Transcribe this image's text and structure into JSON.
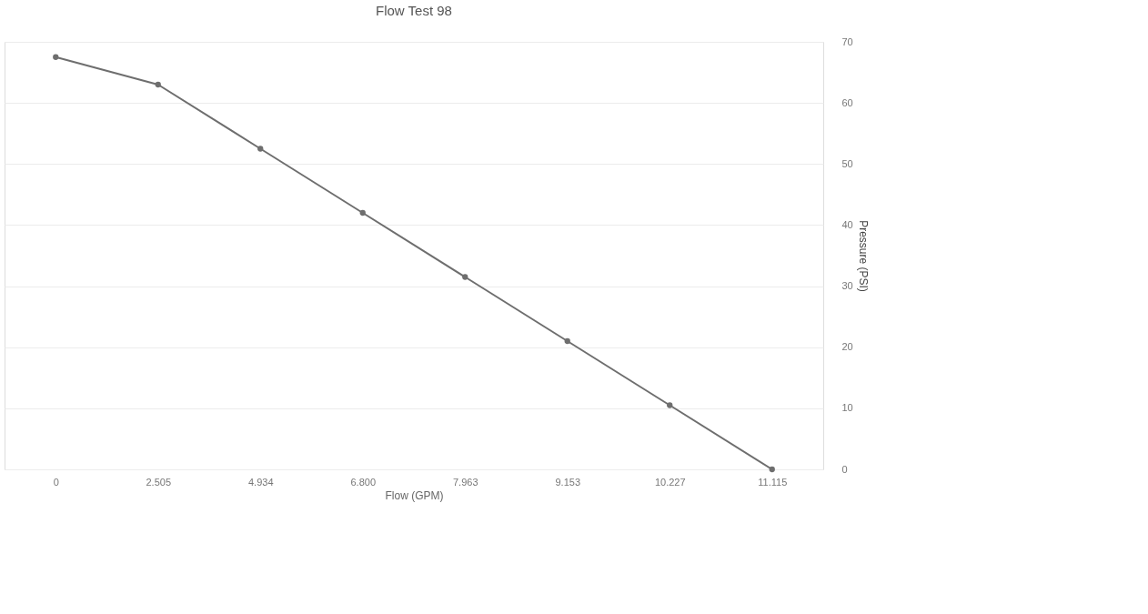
{
  "chart_data": {
    "type": "line",
    "title": "Flow Test 98",
    "xlabel": "Flow (GPM)",
    "ylabel": "Pressure (PSI)",
    "categories": [
      "0",
      "2.505",
      "4.934",
      "6.800",
      "7.963",
      "9.153",
      "10.227",
      "11.115"
    ],
    "series": [
      {
        "color": "#6e6e6e",
        "values": [
          67.5,
          63,
          52.5,
          42,
          31.5,
          21,
          10.5,
          0
        ]
      }
    ],
    "ylim": [
      0,
      70
    ],
    "yticks": [
      0,
      10,
      20,
      30,
      40,
      50,
      60,
      70
    ],
    "grid": "y",
    "marker": "circle",
    "line_style": "solid"
  }
}
